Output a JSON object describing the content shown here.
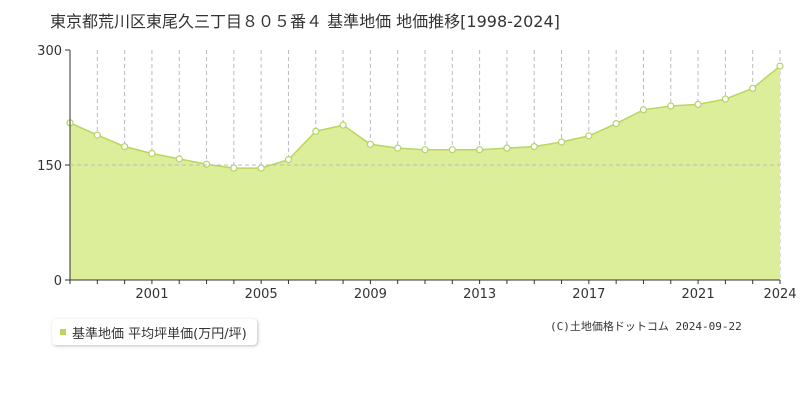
{
  "header": {
    "title": "東京都荒川区東尾久三丁目８０５番４ 基準地価 地価推移[1998-2024]"
  },
  "colors": {
    "area_fill": "#dcee9a",
    "line": "#bad65c",
    "marker_stroke": "#b5d36a",
    "marker_fill": "#ffffff",
    "grid": "#bbbbbb",
    "axis": "#333333"
  },
  "chart_data": {
    "type": "area",
    "title": "東京都荒川区東尾久三丁目８０５番４ 基準地価 地価推移[1998-2024]",
    "xlabel": "",
    "ylabel": "",
    "xlim": [
      1998,
      2024
    ],
    "ylim": [
      0,
      300
    ],
    "y_ticks": [
      0,
      150,
      300
    ],
    "x_ticks": [
      2001,
      2005,
      2009,
      2013,
      2017,
      2021,
      2024
    ],
    "grid": true,
    "legend_position": "bottom-left",
    "series": [
      {
        "name": "基準地価 平均坪単価(万円/坪)",
        "x": [
          1998,
          1999,
          2000,
          2001,
          2002,
          2003,
          2004,
          2005,
          2006,
          2007,
          2008,
          2009,
          2010,
          2011,
          2012,
          2013,
          2014,
          2015,
          2016,
          2017,
          2018,
          2019,
          2020,
          2021,
          2022,
          2023,
          2024
        ],
        "values": [
          205,
          189,
          174,
          165,
          158,
          151,
          146,
          146,
          157,
          194,
          202,
          177,
          172,
          170,
          170,
          170,
          172,
          174,
          180,
          188,
          204,
          222,
          227,
          229,
          236,
          250,
          279
        ]
      }
    ]
  },
  "footer": {
    "credit": "(C)土地価格ドットコム 2024-09-22"
  }
}
